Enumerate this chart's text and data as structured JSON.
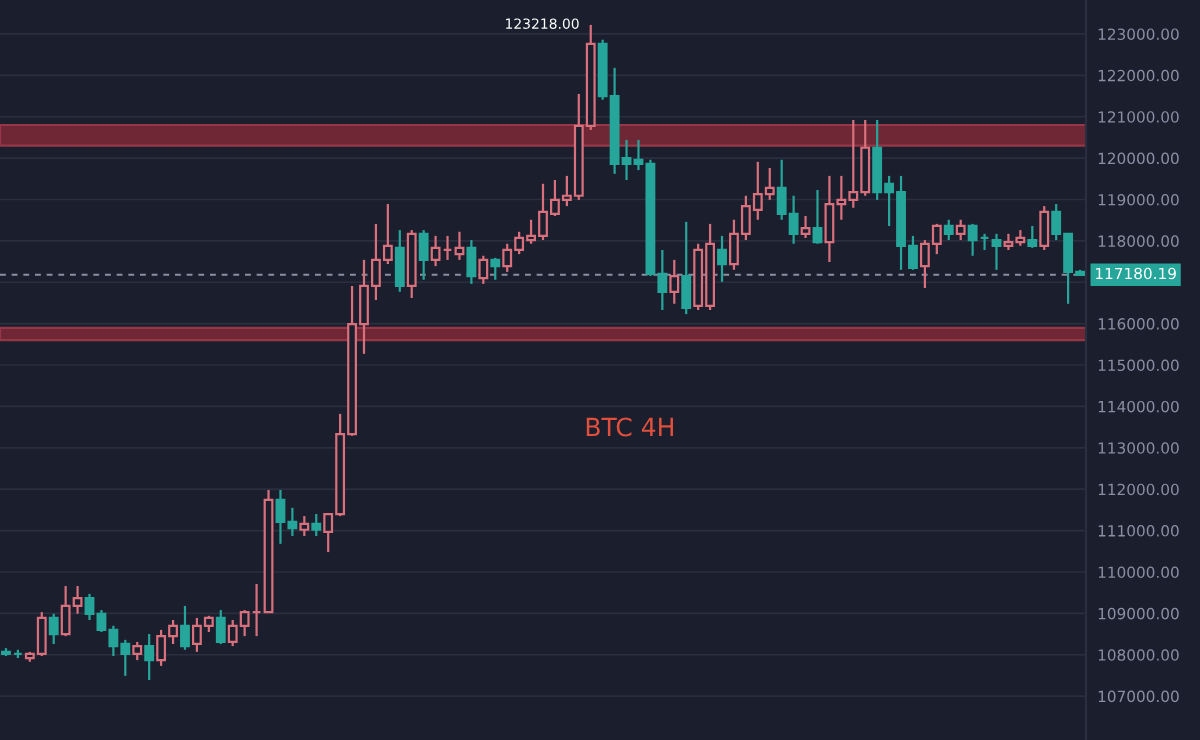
{
  "chart_data": {
    "type": "candlestick",
    "categories": [
      null,
      null,
      null,
      null,
      null,
      null,
      null,
      null,
      null,
      null,
      null,
      null,
      null,
      null,
      null,
      null,
      null,
      null,
      null,
      null,
      null,
      null,
      null,
      null,
      null,
      null,
      null,
      null,
      null,
      null,
      null,
      null,
      null,
      null,
      null,
      null,
      null,
      null,
      null,
      null,
      null,
      null,
      null,
      null,
      null,
      null,
      null,
      null,
      null,
      null,
      null,
      null,
      null,
      null,
      null,
      null,
      null,
      null,
      null,
      null,
      null,
      null,
      null,
      null,
      null,
      null,
      null,
      null,
      null,
      null,
      null,
      null,
      null,
      null,
      null,
      null,
      null,
      null,
      null,
      null,
      null,
      null,
      null,
      null,
      null,
      null,
      null,
      null,
      null,
      null,
      null
    ],
    "ohlc": [
      [
        108070,
        108160,
        107970,
        108020
      ],
      [
        108020,
        108120,
        107920,
        108020
      ],
      [
        107920,
        108070,
        107830,
        108020
      ],
      [
        108020,
        109030,
        107970,
        108890
      ],
      [
        108890,
        108990,
        108260,
        108500
      ],
      [
        108500,
        109660,
        108450,
        109180
      ],
      [
        109180,
        109660,
        108990,
        109370
      ],
      [
        109370,
        109470,
        108840,
        108990
      ],
      [
        108990,
        109080,
        108550,
        108600
      ],
      [
        108600,
        108700,
        107970,
        108210
      ],
      [
        108260,
        108360,
        107490,
        108020
      ],
      [
        108020,
        108310,
        107870,
        108210
      ],
      [
        108210,
        108500,
        107390,
        107870
      ],
      [
        107870,
        108600,
        107730,
        108450
      ],
      [
        108450,
        108840,
        108260,
        108700
      ],
      [
        108700,
        109180,
        108120,
        108210
      ],
      [
        108260,
        108890,
        108070,
        108700
      ],
      [
        108700,
        108940,
        108550,
        108890
      ],
      [
        108890,
        109080,
        108260,
        108310
      ],
      [
        108310,
        108840,
        108210,
        108700
      ],
      [
        108700,
        109080,
        108450,
        109030
      ],
      [
        109030,
        109710,
        108450,
        109030
      ],
      [
        109030,
        111980,
        109030,
        111740
      ],
      [
        111740,
        111980,
        110680,
        111210
      ],
      [
        111210,
        111550,
        110870,
        111060
      ],
      [
        111020,
        111350,
        110870,
        111160
      ],
      [
        111160,
        111400,
        110870,
        111020
      ],
      [
        110970,
        111400,
        110480,
        111400
      ],
      [
        111400,
        113820,
        111350,
        113330
      ],
      [
        113330,
        116910,
        113290,
        115990
      ],
      [
        115990,
        117540,
        115270,
        116910
      ],
      [
        116910,
        118410,
        116570,
        117540
      ],
      [
        117540,
        118890,
        117440,
        117880
      ],
      [
        117830,
        118260,
        116770,
        116910
      ],
      [
        116910,
        118260,
        116620,
        118170
      ],
      [
        118170,
        118260,
        117060,
        117540
      ],
      [
        117540,
        118120,
        117390,
        117830
      ],
      [
        117780,
        118120,
        117540,
        117780
      ],
      [
        117680,
        118220,
        117540,
        117830
      ],
      [
        117830,
        118020,
        116960,
        117150
      ],
      [
        117100,
        117640,
        116960,
        117540
      ],
      [
        117540,
        117590,
        117060,
        117390
      ],
      [
        117390,
        117930,
        117250,
        117780
      ],
      [
        117780,
        118220,
        117680,
        118070
      ],
      [
        118020,
        118510,
        117930,
        118120
      ],
      [
        118120,
        119380,
        118020,
        118700
      ],
      [
        118650,
        119470,
        118600,
        118990
      ],
      [
        118990,
        119570,
        118840,
        119090
      ],
      [
        119090,
        121550,
        118990,
        120780
      ],
      [
        120780,
        123218,
        120680,
        122760
      ],
      [
        122760,
        122860,
        121410,
        121500
      ],
      [
        121500,
        122180,
        119620,
        119860
      ],
      [
        120000,
        120440,
        119470,
        119860
      ],
      [
        119960,
        120440,
        119710,
        119860
      ],
      [
        119860,
        119960,
        117150,
        117200
      ],
      [
        117200,
        117780,
        116330,
        116770
      ],
      [
        116770,
        117540,
        116480,
        117150
      ],
      [
        117150,
        118460,
        116230,
        116380
      ],
      [
        116430,
        117930,
        116330,
        117780
      ],
      [
        116430,
        118410,
        116330,
        117930
      ],
      [
        117780,
        118120,
        117010,
        117440
      ],
      [
        117440,
        118510,
        117300,
        118170
      ],
      [
        118170,
        119090,
        118020,
        118840
      ],
      [
        118750,
        119910,
        118510,
        119130
      ],
      [
        119130,
        119760,
        118990,
        119280
      ],
      [
        119280,
        119960,
        118510,
        118650
      ],
      [
        118650,
        119090,
        117930,
        118170
      ],
      [
        118170,
        118600,
        118070,
        118310
      ],
      [
        118310,
        119230,
        117930,
        117970
      ],
      [
        117970,
        119570,
        117490,
        118890
      ],
      [
        118890,
        119570,
        118510,
        118990
      ],
      [
        118990,
        120920,
        118800,
        119180
      ],
      [
        119180,
        120920,
        119090,
        120250
      ],
      [
        120250,
        120920,
        118990,
        119180
      ],
      [
        119380,
        119570,
        118360,
        119180
      ],
      [
        119180,
        119570,
        117300,
        117880
      ],
      [
        117880,
        118120,
        117300,
        117350
      ],
      [
        117390,
        118020,
        116860,
        117930
      ],
      [
        117930,
        118410,
        117680,
        118360
      ],
      [
        118360,
        118510,
        118020,
        118170
      ],
      [
        118170,
        118510,
        118020,
        118360
      ],
      [
        118360,
        118410,
        117640,
        118020
      ],
      [
        118070,
        118170,
        117780,
        118070
      ],
      [
        118020,
        118170,
        117300,
        117880
      ],
      [
        117880,
        118170,
        117780,
        117970
      ],
      [
        117970,
        118260,
        117880,
        118070
      ],
      [
        118020,
        118360,
        117830,
        117880
      ],
      [
        117880,
        118840,
        117780,
        118700
      ],
      [
        118700,
        118890,
        118020,
        118170
      ],
      [
        118170,
        118170,
        116480,
        117250
      ],
      [
        117250,
        117300,
        117150,
        117180.19
      ]
    ],
    "colors": [
      "#26a69a",
      "#26a69a",
      "#d9707d",
      "#d9707d",
      "#26a69a",
      "#d9707d",
      "#d9707d",
      "#26a69a",
      "#26a69a",
      "#26a69a",
      "#26a69a",
      "#d9707d",
      "#26a69a",
      "#d9707d",
      "#d9707d",
      "#26a69a",
      "#d9707d",
      "#d9707d",
      "#26a69a",
      "#d9707d",
      "#d9707d",
      "#d9707d",
      "#d9707d",
      "#26a69a",
      "#26a69a",
      "#d9707d",
      "#26a69a",
      "#d9707d",
      "#d9707d",
      "#d9707d",
      "#d9707d",
      "#d9707d",
      "#d9707d",
      "#26a69a",
      "#d9707d",
      "#26a69a",
      "#d9707d",
      "#d9707d",
      "#d9707d",
      "#26a69a",
      "#d9707d",
      "#26a69a",
      "#d9707d",
      "#d9707d",
      "#d9707d",
      "#d9707d",
      "#d9707d",
      "#d9707d",
      "#d9707d",
      "#d9707d",
      "#26a69a",
      "#26a69a",
      "#26a69a",
      "#26a69a",
      "#26a69a",
      "#26a69a",
      "#d9707d",
      "#26a69a",
      "#d9707d",
      "#d9707d",
      "#26a69a",
      "#d9707d",
      "#d9707d",
      "#d9707d",
      "#d9707d",
      "#26a69a",
      "#26a69a",
      "#d9707d",
      "#26a69a",
      "#d9707d",
      "#d9707d",
      "#d9707d",
      "#d9707d",
      "#26a69a",
      "#26a69a",
      "#26a69a",
      "#26a69a",
      "#d9707d",
      "#d9707d",
      "#26a69a",
      "#d9707d",
      "#26a69a",
      "#26a69a",
      "#26a69a",
      "#d9707d",
      "#d9707d",
      "#26a69a",
      "#d9707d",
      "#26a69a",
      "#26a69a",
      "#26a69a"
    ],
    "ylim": [
      105940,
      123820
    ],
    "yticks": [
      {
        "value": 107000,
        "label": "107000.00"
      },
      {
        "value": 108000,
        "label": "108000.00"
      },
      {
        "value": 109000,
        "label": "109000.00"
      },
      {
        "value": 110000,
        "label": "110000.00"
      },
      {
        "value": 111000,
        "label": "111000.00"
      },
      {
        "value": 112000,
        "label": "112000.00"
      },
      {
        "value": 113000,
        "label": "113000.00"
      },
      {
        "value": 114000,
        "label": "114000.00"
      },
      {
        "value": 115000,
        "label": "115000.00"
      },
      {
        "value": 116000,
        "label": "116000.00"
      },
      {
        "value": 117000,
        "label": null
      },
      {
        "value": 118000,
        "label": "118000.00"
      },
      {
        "value": 119000,
        "label": "119000.00"
      },
      {
        "value": 120000,
        "label": "120000.00"
      },
      {
        "value": 121000,
        "label": "121000.00"
      },
      {
        "value": 122000,
        "label": "122000.00"
      },
      {
        "value": 123000,
        "label": "123000.00"
      }
    ],
    "tick_labels": "y",
    "grid": "y",
    "ref_lines": [
      {
        "axis": "y",
        "value": 117180.19,
        "label": "117180.19",
        "color": "#8a8fa3",
        "line_style": "dashed"
      }
    ],
    "bands": [
      {
        "axis": "y",
        "from": 120300,
        "to": 120800,
        "color": "#8b2a3a"
      },
      {
        "axis": "y",
        "from": 115600,
        "to": 115900,
        "color": "#8b2a3a"
      }
    ],
    "annotations": [
      "BTC 4H",
      "123218.00"
    ]
  }
}
